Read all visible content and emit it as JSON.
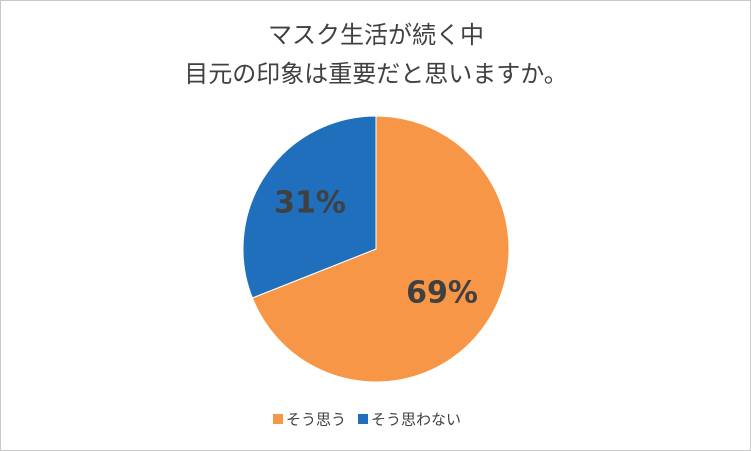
{
  "chart_data": {
    "type": "pie",
    "title": [
      "マスク生活が続く中",
      "目元の印象は重要だと思いますか。"
    ],
    "categories": [
      "そう思う",
      "そう思わない"
    ],
    "values": [
      69,
      31
    ],
    "value_labels": [
      "69%",
      "31%"
    ],
    "colors": [
      "#f79646",
      "#1f6fbc"
    ],
    "legend": "bottom"
  }
}
